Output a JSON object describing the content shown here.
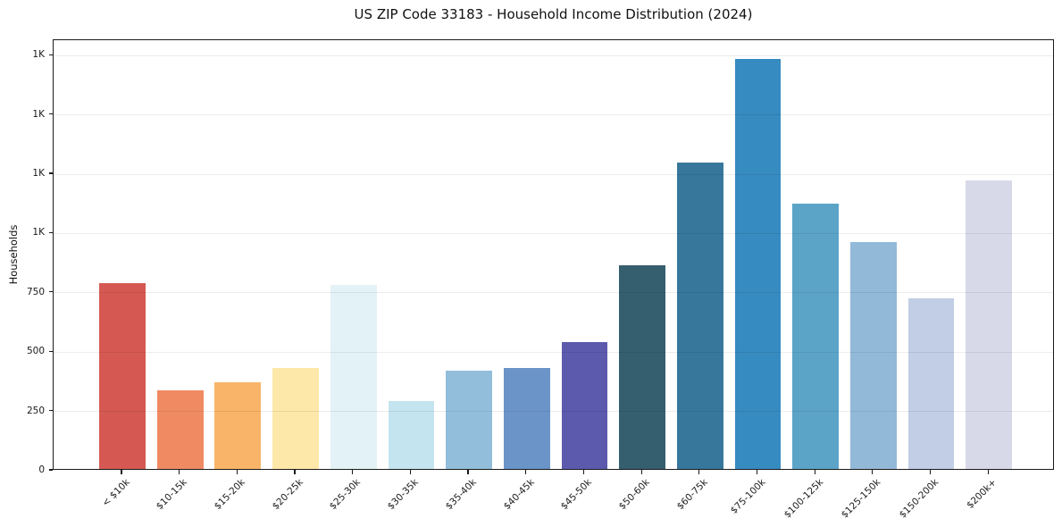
{
  "chart_data": {
    "type": "bar",
    "title": "US ZIP Code 33183 - Household Income Distribution (2024)",
    "xlabel": "",
    "ylabel": "Households",
    "categories": [
      "< $10k",
      "$10-15k",
      "$15-20k",
      "$20-25k",
      "$25-30k",
      "$30-35k",
      "$35-40k",
      "$40-45k",
      "$45-50k",
      "$50-60k",
      "$60-75k",
      "$75-100k",
      "$100-125k",
      "$125-150k",
      "$150-200k",
      "$200k+"
    ],
    "values": [
      785,
      330,
      365,
      425,
      775,
      285,
      415,
      425,
      535,
      860,
      1290,
      1730,
      1120,
      955,
      720,
      1215
    ],
    "bar_colors": [
      "#d55952",
      "#f08a62",
      "#f9b469",
      "#fde8a9",
      "#e3f2f6",
      "#c4e4ef",
      "#92bedc",
      "#6b94c9",
      "#5b5aad",
      "#355f6e",
      "#37779c",
      "#368bc0",
      "#5ba4c8",
      "#93b9d8",
      "#c1cee5",
      "#d8d9e8"
    ],
    "ylim": [
      0,
      1815
    ],
    "xlim": [
      -1.19,
      16.14
    ],
    "bar_width": 0.8,
    "yticks": [
      {
        "value": 0,
        "label": "0"
      },
      {
        "value": 250,
        "label": "250"
      },
      {
        "value": 500,
        "label": "500"
      },
      {
        "value": 750,
        "label": "750"
      },
      {
        "value": 1000,
        "label": "1K"
      },
      {
        "value": 1250,
        "label": "1K"
      },
      {
        "value": 1500,
        "label": "1K"
      },
      {
        "value": 1750,
        "label": "1K"
      }
    ],
    "grid": "horizontal-light",
    "legend": "none"
  }
}
